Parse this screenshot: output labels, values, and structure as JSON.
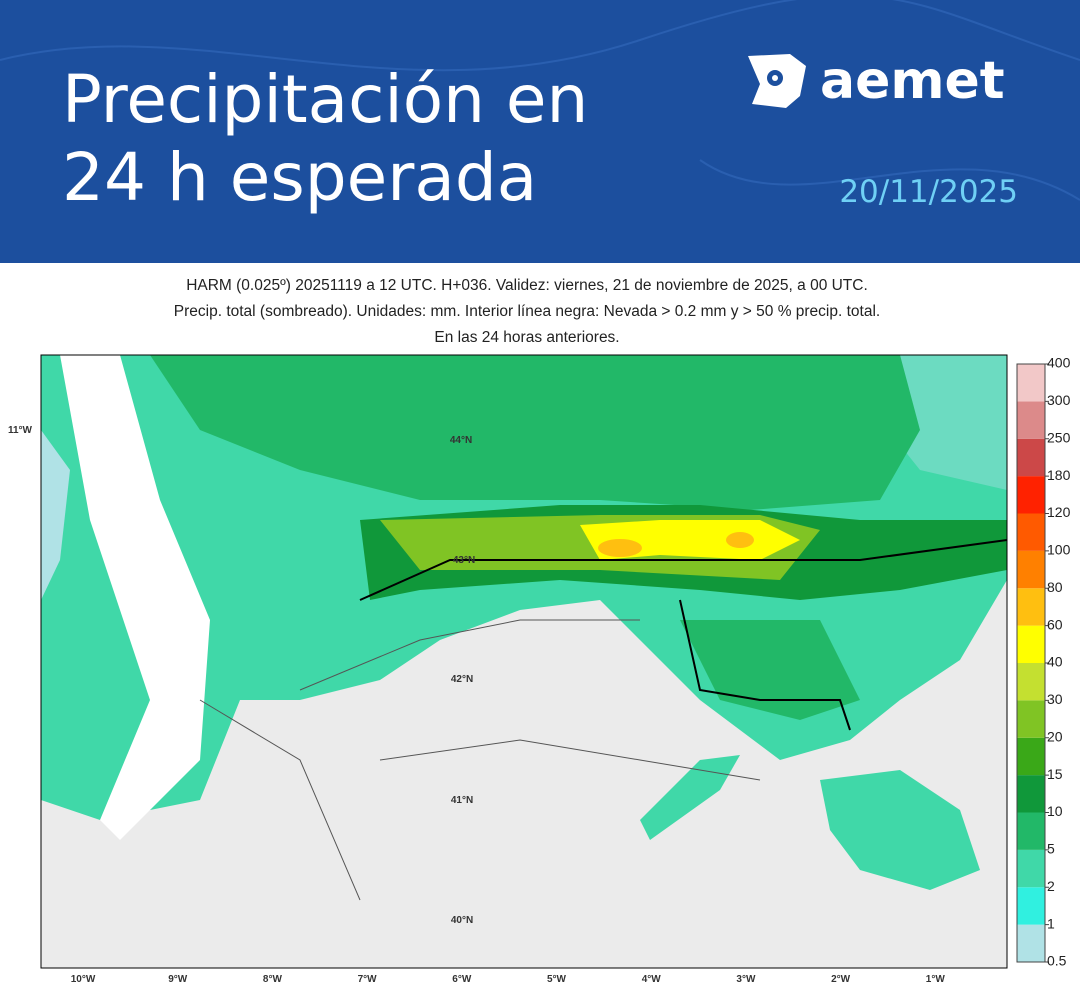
{
  "header": {
    "title_lines": [
      "Precipitación en",
      "24 h esperada"
    ],
    "logo": "aemet",
    "date": "20/11/2025"
  },
  "map": {
    "caption_lines": [
      "HARM (0.025º) 20251119 a 12 UTC. H+036. Validez: viernes, 21 de noviembre de 2025, a 00 UTC.",
      "Precip. total (sombreado). Unidades: mm. Interior línea negra: Nevada > 0.2 mm y > 50 % precip. total.",
      "En las 24 horas anteriores."
    ],
    "lon_labels": [
      "10°W",
      "9°W",
      "8°W",
      "7°W",
      "6°W",
      "5°W",
      "4°W",
      "3°W",
      "2°W",
      "1°W"
    ],
    "lat_labels": [
      "44°N",
      "43°N",
      "42°N",
      "41°N",
      "40°N"
    ],
    "side_label": "11°W"
  },
  "colorbar": {
    "levels": [
      0.5,
      1,
      2,
      5,
      10,
      15,
      20,
      30,
      40,
      60,
      80,
      100,
      120,
      180,
      250,
      300,
      400
    ],
    "colors": [
      "#b0e2e6",
      "#30f0e0",
      "#40d8a8",
      "#22b868",
      "#10983a",
      "#3aa818",
      "#80c424",
      "#c4e030",
      "#ffff00",
      "#ffbf10",
      "#ff8000",
      "#ff5a00",
      "#ff2200",
      "#cc4848",
      "#dc8a8a",
      "#f2c8c8"
    ]
  }
}
